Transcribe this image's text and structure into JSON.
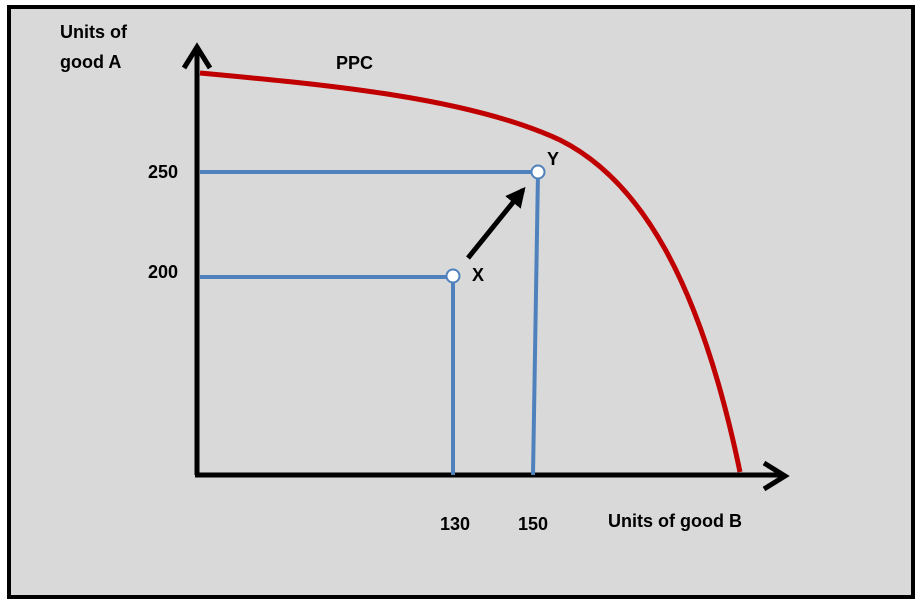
{
  "curve_label": "PPC",
  "y_axis_label": {
    "lines": [
      "Units of",
      "good A"
    ]
  },
  "x_axis_label": "Units of good B",
  "y_ticks": [
    250,
    200
  ],
  "x_ticks": [
    130,
    150
  ],
  "points": [
    {
      "label": "X"
    },
    {
      "label": "Y"
    }
  ]
}
